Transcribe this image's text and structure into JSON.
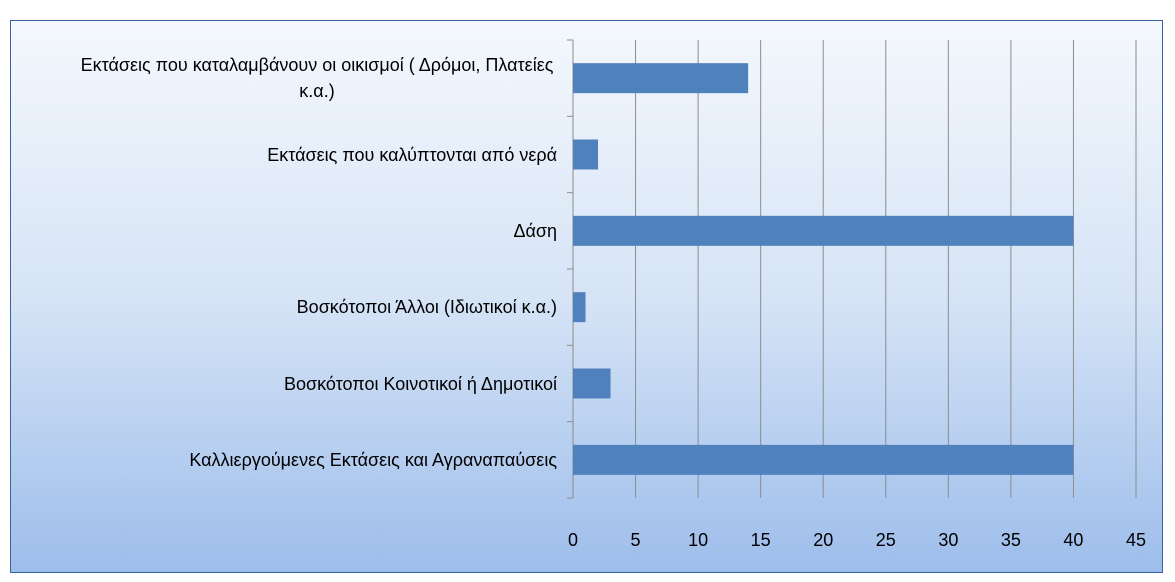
{
  "chart_data": {
    "type": "bar",
    "orientation": "horizontal",
    "categories": [
      "Εκτάσεις που καταλαμβάνουν οι οικισμοί ( Δρόμοι, Πλατείες κ.α.)",
      "Εκτάσεις που καλύπτονται από νερά",
      "Δάση",
      "Βοσκότοποι Άλλοι (Ιδιωτικοί κ.α.)",
      "Βοσκότοποι Κοινοτικοί ή Δημοτικοί",
      "Καλλιεργούμενες Εκτάσεις και Αγραναπαύσεις"
    ],
    "values": [
      14,
      2,
      40,
      1,
      3,
      40
    ],
    "color": "#4f81bd",
    "xlim": [
      0,
      45
    ],
    "xticks": [
      0,
      5,
      10,
      15,
      20,
      25,
      30,
      35,
      40,
      45
    ],
    "grid": true
  }
}
